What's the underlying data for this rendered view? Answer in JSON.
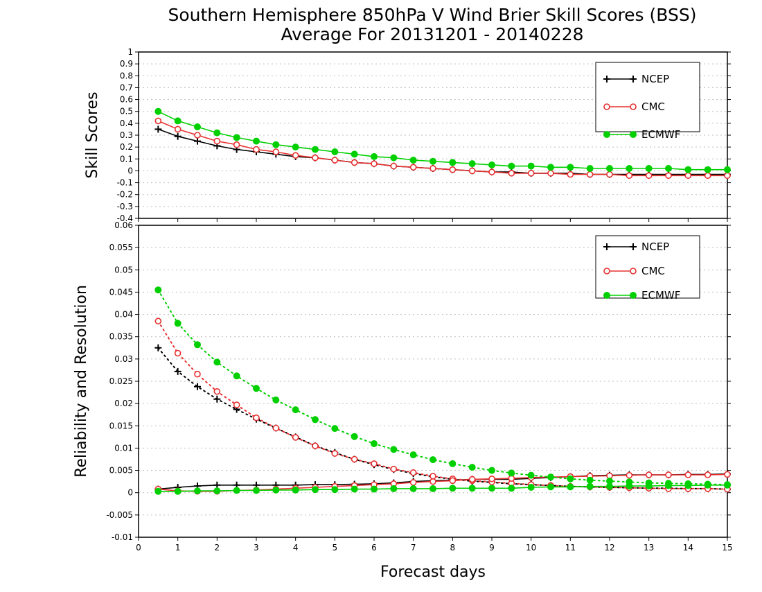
{
  "title": {
    "line1": "Southern Hemisphere 850hPa V Wind Brier Skill Scores (BSS)",
    "line2": "Average For 20131201 - 20140228"
  },
  "colors": {
    "NCEP": "#000000",
    "CMC": "#e83030",
    "ECMWF": "#00d000"
  },
  "chart_data": [
    {
      "type": "line",
      "ylabel": "Skill Scores",
      "xlabel": "",
      "xlim": [
        0,
        15
      ],
      "ylim": [
        -0.4,
        1
      ],
      "yticks": [
        "-0.4",
        "-0.3",
        "-0.2",
        "-0.1",
        "0",
        "0.1",
        "0.2",
        "0.3",
        "0.4",
        "0.5",
        "0.6",
        "0.7",
        "0.8",
        "0.9",
        "1"
      ],
      "xticks": [],
      "grid": true,
      "legend_position": "top-right",
      "legend": [
        "NCEP",
        "CMC",
        "ECMWF"
      ],
      "x": [
        0.5,
        1,
        1.5,
        2,
        2.5,
        3,
        3.5,
        4,
        4.5,
        5,
        5.5,
        6,
        6.5,
        7,
        7.5,
        8,
        8.5,
        9,
        9.5,
        10,
        10.5,
        11,
        11.5,
        12,
        12.5,
        13,
        13.5,
        14,
        14.5,
        15
      ],
      "series": [
        {
          "name": "NCEP",
          "marker": "plus",
          "style": "solid",
          "values": [
            0.35,
            0.29,
            0.25,
            0.21,
            0.18,
            0.16,
            0.14,
            0.12,
            0.11,
            0.09,
            0.07,
            0.06,
            0.04,
            0.03,
            0.02,
            0.01,
            0,
            -0.01,
            -0.01,
            -0.02,
            -0.02,
            -0.02,
            -0.03,
            -0.03,
            -0.03,
            -0.03,
            -0.03,
            -0.03,
            -0.03,
            -0.03
          ]
        },
        {
          "name": "CMC",
          "marker": "open-circle",
          "style": "solid",
          "values": [
            0.42,
            0.35,
            0.3,
            0.25,
            0.22,
            0.18,
            0.16,
            0.13,
            0.11,
            0.09,
            0.07,
            0.06,
            0.04,
            0.03,
            0.02,
            0.01,
            0,
            -0.01,
            -0.02,
            -0.02,
            -0.02,
            -0.03,
            -0.03,
            -0.03,
            -0.04,
            -0.04,
            -0.04,
            -0.04,
            -0.04,
            -0.04
          ]
        },
        {
          "name": "ECMWF",
          "marker": "filled-circle",
          "style": "solid",
          "values": [
            0.5,
            0.42,
            0.37,
            0.32,
            0.28,
            0.25,
            0.22,
            0.2,
            0.18,
            0.16,
            0.14,
            0.12,
            0.11,
            0.09,
            0.08,
            0.07,
            0.06,
            0.05,
            0.04,
            0.04,
            0.03,
            0.03,
            0.02,
            0.02,
            0.02,
            0.02,
            0.02,
            0.01,
            0.01,
            0.01
          ]
        }
      ]
    },
    {
      "type": "line",
      "ylabel": "Reliability and Resolution",
      "xlabel": "Forecast days",
      "xlim": [
        0,
        15
      ],
      "ylim": [
        -0.01,
        0.06
      ],
      "yticks": [
        "-0.01",
        "-0.005",
        "0",
        "0.005",
        "0.01",
        "0.015",
        "0.02",
        "0.025",
        "0.03",
        "0.035",
        "0.04",
        "0.045",
        "0.05",
        "0.055",
        "0.06"
      ],
      "xticks": [
        "0",
        "1",
        "2",
        "3",
        "4",
        "5",
        "6",
        "7",
        "8",
        "9",
        "10",
        "11",
        "12",
        "13",
        "14",
        "15"
      ],
      "grid": true,
      "legend_position": "top-right",
      "legend": [
        "NCEP",
        "CMC",
        "ECMWF"
      ],
      "x": [
        0.5,
        1,
        1.5,
        2,
        2.5,
        3,
        3.5,
        4,
        4.5,
        5,
        5.5,
        6,
        6.5,
        7,
        7.5,
        8,
        8.5,
        9,
        9.5,
        10,
        10.5,
        11,
        11.5,
        12,
        12.5,
        13,
        13.5,
        14,
        14.5,
        15
      ],
      "series": [
        {
          "name": "NCEP",
          "metric": "resolution",
          "marker": "plus",
          "style": "dotted",
          "values": [
            0.0325,
            0.0272,
            0.0238,
            0.021,
            0.0187,
            0.0165,
            0.0145,
            0.0125,
            0.0105,
            0.009,
            0.0075,
            0.0063,
            0.0052,
            0.0043,
            0.0036,
            0.003,
            0.0026,
            0.0023,
            0.002,
            0.0018,
            0.0016,
            0.0014,
            0.0013,
            0.0012,
            0.0011,
            0.001,
            0.001,
            0.0009,
            0.0009,
            0.0008
          ]
        },
        {
          "name": "NCEP",
          "metric": "reliability",
          "marker": "plus",
          "style": "solid",
          "values": [
            0.0008,
            0.0012,
            0.0015,
            0.0017,
            0.0017,
            0.0017,
            0.0017,
            0.0017,
            0.0018,
            0.0018,
            0.0019,
            0.002,
            0.0022,
            0.0025,
            0.0027,
            0.0028,
            0.003,
            0.003,
            0.003,
            0.0032,
            0.0034,
            0.0036,
            0.0038,
            0.0039,
            0.004,
            0.004,
            0.004,
            0.0041,
            0.0041,
            0.0042
          ]
        },
        {
          "name": "CMC",
          "metric": "resolution",
          "marker": "open-circle",
          "style": "dotted",
          "values": [
            0.0385,
            0.0313,
            0.0266,
            0.0227,
            0.0197,
            0.0168,
            0.0145,
            0.0124,
            0.0105,
            0.0088,
            0.0075,
            0.0065,
            0.0053,
            0.0045,
            0.0037,
            0.0031,
            0.0027,
            0.0024,
            0.0021,
            0.0018,
            0.0016,
            0.0014,
            0.0013,
            0.0012,
            0.0011,
            0.001,
            0.0009,
            0.0009,
            0.0009,
            0.0008
          ]
        },
        {
          "name": "CMC",
          "metric": "reliability",
          "marker": "open-circle",
          "style": "solid",
          "values": [
            0.0008,
            0.0004,
            0.0003,
            0.0003,
            0.0005,
            0.0006,
            0.0008,
            0.001,
            0.0012,
            0.0014,
            0.0016,
            0.0018,
            0.002,
            0.0023,
            0.0025,
            0.0027,
            0.003,
            0.0031,
            0.0032,
            0.0034,
            0.0035,
            0.0036,
            0.0037,
            0.0038,
            0.0039,
            0.004,
            0.004,
            0.004,
            0.004,
            0.0041
          ]
        },
        {
          "name": "ECMWF",
          "metric": "resolution",
          "marker": "filled-circle",
          "style": "dotted",
          "values": [
            0.0455,
            0.038,
            0.0332,
            0.0293,
            0.0262,
            0.0234,
            0.0208,
            0.0186,
            0.0164,
            0.0144,
            0.0126,
            0.011,
            0.0097,
            0.0085,
            0.0074,
            0.0065,
            0.0057,
            0.005,
            0.0044,
            0.0039,
            0.0035,
            0.0031,
            0.0028,
            0.0026,
            0.0024,
            0.0022,
            0.0021,
            0.002,
            0.0019,
            0.0018
          ]
        },
        {
          "name": "ECMWF",
          "metric": "reliability",
          "marker": "filled-circle",
          "style": "solid",
          "values": [
            0.0003,
            0.0003,
            0.0004,
            0.0004,
            0.0005,
            0.0005,
            0.0006,
            0.0006,
            0.0007,
            0.0007,
            0.0008,
            0.0008,
            0.0009,
            0.0009,
            0.0009,
            0.001,
            0.001,
            0.001,
            0.001,
            0.0012,
            0.0013,
            0.0013,
            0.0014,
            0.0014,
            0.0015,
            0.0015,
            0.0016,
            0.0016,
            0.0017,
            0.0017
          ]
        }
      ]
    }
  ]
}
